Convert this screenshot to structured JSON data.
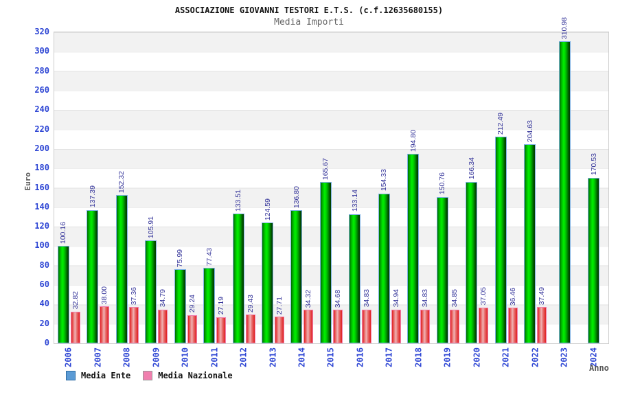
{
  "header": {
    "title": "ASSOCIAZIONE GIOVANNI TESTORI E.T.S. (c.f.12635680155)",
    "subtitle": "Media Importi"
  },
  "chart_data": {
    "type": "bar",
    "title": "ASSOCIAZIONE GIOVANNI TESTORI E.T.S. (c.f.12635680155)",
    "subtitle": "Media Importi",
    "xlabel": "Anno",
    "ylabel": "Euro",
    "ylim": [
      0,
      320
    ],
    "ytick_step": 20,
    "grid": "horizontal-bands",
    "legend_position": "bottom-left",
    "categories": [
      "2006",
      "2007",
      "2008",
      "2009",
      "2010",
      "2011",
      "2012",
      "2013",
      "2014",
      "2015",
      "2016",
      "2017",
      "2018",
      "2019",
      "2020",
      "2021",
      "2022",
      "2023",
      "2024"
    ],
    "series": [
      {
        "name": "Media Ente",
        "values": [
          100.16,
          137.39,
          152.32,
          105.91,
          75.99,
          77.43,
          133.51,
          124.59,
          136.8,
          165.67,
          133.14,
          154.33,
          194.8,
          150.76,
          166.34,
          212.49,
          204.63,
          310.98,
          170.53
        ],
        "labels": [
          "100.16",
          "137.39",
          "152.32",
          "105.91",
          "75.99",
          "77.43",
          "133.51",
          "124.59",
          "136.80",
          "165.67",
          "133.14",
          "154.33",
          "194.80",
          "150.76",
          "166.34",
          "212.49",
          "204.63",
          "310.98",
          "170.53"
        ]
      },
      {
        "name": "Media Nazionale",
        "values": [
          32.82,
          38.0,
          37.36,
          34.79,
          29.24,
          27.19,
          29.43,
          27.71,
          34.32,
          34.68,
          34.83,
          34.94,
          34.83,
          34.85,
          37.05,
          36.46,
          37.49,
          null,
          null
        ],
        "labels": [
          "32.82",
          "38.00",
          "37.36",
          "34.79",
          "29.24",
          "27.19",
          "29.43",
          "27.71",
          "34.32",
          "34.68",
          "34.83",
          "34.94",
          "34.83",
          "34.85",
          "37.05",
          "36.46",
          "37.49",
          null,
          null
        ]
      }
    ],
    "colors": {
      "bar1_fill": "#00c800",
      "bar1_border": "#7fb2e5",
      "bar2_fill": "#e04040",
      "bar2_border": "#f080b0",
      "legend1_swatch": "#5b9bd5",
      "legend2_swatch": "#f07fae",
      "tick_label": "#2e46d4",
      "value_label": "#333399",
      "band_gray": "#f2f2f2",
      "axis_title": "#555555"
    }
  }
}
